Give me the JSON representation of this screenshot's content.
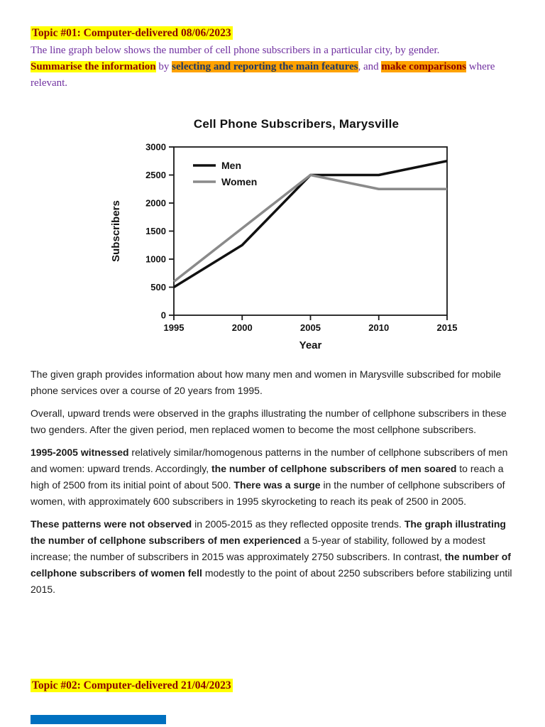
{
  "colors": {
    "highlight_yellow": "#FFFF00",
    "highlight_orange": "#FFA200",
    "heading_dark_red": "#8B0000",
    "prompt_purple": "#7030A0",
    "feature_navy": "#1F3864",
    "body_text": "#1B1B1B",
    "men_line": "#111111",
    "women_line": "#8A8A8A",
    "clipped_line_blue": "#0070C0"
  },
  "topic1": {
    "title": "Topic #01: Computer-delivered 08/06/2023",
    "prompt_intro": "The line graph below shows the number of cell phone subscribers in a particular city, by gender.",
    "prompt_task": [
      {
        "text": "Summarise the information",
        "style": "seg-hl-yellow-darkred"
      },
      {
        "text": " by ",
        "style": ""
      },
      {
        "text": "selecting and reporting the main features",
        "style": "seg-hl-orange-navy"
      },
      {
        "text": ", and ",
        "style": ""
      },
      {
        "text": "make comparisons",
        "style": "seg-hl-orange-darkred"
      },
      {
        "text": " where relevant.",
        "style": ""
      }
    ]
  },
  "chart_data": {
    "type": "line",
    "title": "Cell Phone Subscribers, Marysville",
    "xlabel": "Year",
    "ylabel": "Subscribers",
    "categories": [
      "1995",
      "2000",
      "2005",
      "2010",
      "2015"
    ],
    "series": [
      {
        "name": "Men",
        "color": "#111111",
        "values": [
          500,
          1250,
          2500,
          2500,
          2750
        ]
      },
      {
        "name": "Women",
        "color": "#8A8A8A",
        "values": [
          600,
          1550,
          2500,
          2250,
          2250
        ]
      }
    ],
    "ylim": [
      0,
      3000
    ],
    "ytick_step": 500,
    "grid": false,
    "legend_position": "top-left-inside"
  },
  "essay": {
    "paragraphs": [
      [
        {
          "text": "The given graph provides information about how many men and women in Marysville subscribed for mobile phone services over a course of 20 years from 1995.",
          "style": ""
        }
      ],
      [
        {
          "text": "Overall, upward trends were observed in the graphs illustrating the number of cellphone subscribers in these two genders. After the given period, men replaced women to become the most cellphone subscribers.",
          "style": ""
        }
      ],
      [
        {
          "text": "1995-2005 witnessed ",
          "style": "seg-bold"
        },
        {
          "text": "relatively similar/homogenous patterns in the number of cellphone subscribers of men and women: upward trends. Accordingly, ",
          "style": ""
        },
        {
          "text": "the number of cellphone subscribers of men soared ",
          "style": "seg-bold"
        },
        {
          "text": "to reach a high of 2500 from its initial point of about 500. ",
          "style": ""
        },
        {
          "text": "There was a surge ",
          "style": "seg-bold"
        },
        {
          "text": "in the number of cellphone subscribers of women, with approximately 600 subscribers in 1995 skyrocketing to reach its peak of 2500 in 2005.",
          "style": ""
        }
      ],
      [
        {
          "text": "These patterns were not observed ",
          "style": "seg-bold"
        },
        {
          "text": "in 2005-2015 as they reflected opposite trends. ",
          "style": ""
        },
        {
          "text": "The graph illustrating the number of cellphone subscribers of men experienced ",
          "style": "seg-bold"
        },
        {
          "text": "a 5-year of stability, followed by a modest increase; the number of subscribers in 2015 was approximately 2750 subscribers. In contrast, ",
          "style": ""
        },
        {
          "text": "the number of cellphone subscribers of women fell ",
          "style": "seg-bold"
        },
        {
          "text": "modestly to the point of about 2250 subscribers before stabilizing until 2015.",
          "style": ""
        }
      ]
    ]
  },
  "topic2": {
    "title": "Topic #02: Computer-delivered 21/04/2023"
  }
}
